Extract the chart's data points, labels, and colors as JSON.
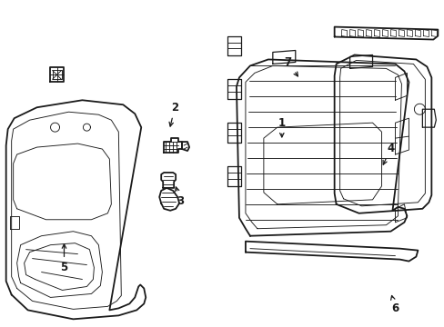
{
  "bg_color": "#ffffff",
  "line_color": "#1a1a1a",
  "lw_main": 1.3,
  "lw_thin": 0.65,
  "lw_med": 0.9,
  "fig_width": 4.89,
  "fig_height": 3.6,
  "dpi": 100,
  "label_fontsize": 8.5
}
